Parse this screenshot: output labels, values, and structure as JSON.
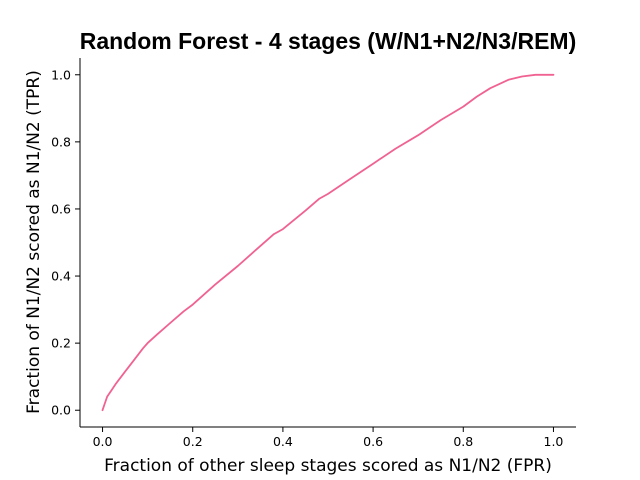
{
  "chart_data": {
    "type": "line",
    "title": "Random Forest - 4 stages (W/N1+N2/N3/REM)",
    "xlabel": "Fraction of other sleep stages scored as N1/N2 (FPR)",
    "ylabel": "Fraction of N1/N2 scored as N1/N2 (TPR)",
    "xlim": [
      -0.05,
      1.05
    ],
    "ylim": [
      -0.05,
      1.05
    ],
    "xticks": [
      "0.0",
      "0.2",
      "0.4",
      "0.6",
      "0.8",
      "1.0"
    ],
    "yticks": [
      "0.0",
      "0.2",
      "0.4",
      "0.6",
      "0.8",
      "1.0"
    ],
    "grid": false,
    "series": [
      {
        "color": "#f06292",
        "x": [
          0.0,
          0.005,
          0.01,
          0.02,
          0.03,
          0.05,
          0.07,
          0.09,
          0.1,
          0.12,
          0.15,
          0.18,
          0.2,
          0.25,
          0.3,
          0.35,
          0.38,
          0.4,
          0.45,
          0.48,
          0.5,
          0.55,
          0.6,
          0.65,
          0.7,
          0.75,
          0.8,
          0.83,
          0.86,
          0.9,
          0.93,
          0.96,
          1.0
        ],
        "y": [
          0.0,
          0.02,
          0.04,
          0.06,
          0.08,
          0.115,
          0.15,
          0.185,
          0.2,
          0.225,
          0.26,
          0.295,
          0.315,
          0.375,
          0.43,
          0.49,
          0.525,
          0.54,
          0.595,
          0.63,
          0.645,
          0.69,
          0.735,
          0.78,
          0.82,
          0.865,
          0.905,
          0.935,
          0.96,
          0.985,
          0.995,
          1.0,
          1.0
        ]
      }
    ]
  }
}
